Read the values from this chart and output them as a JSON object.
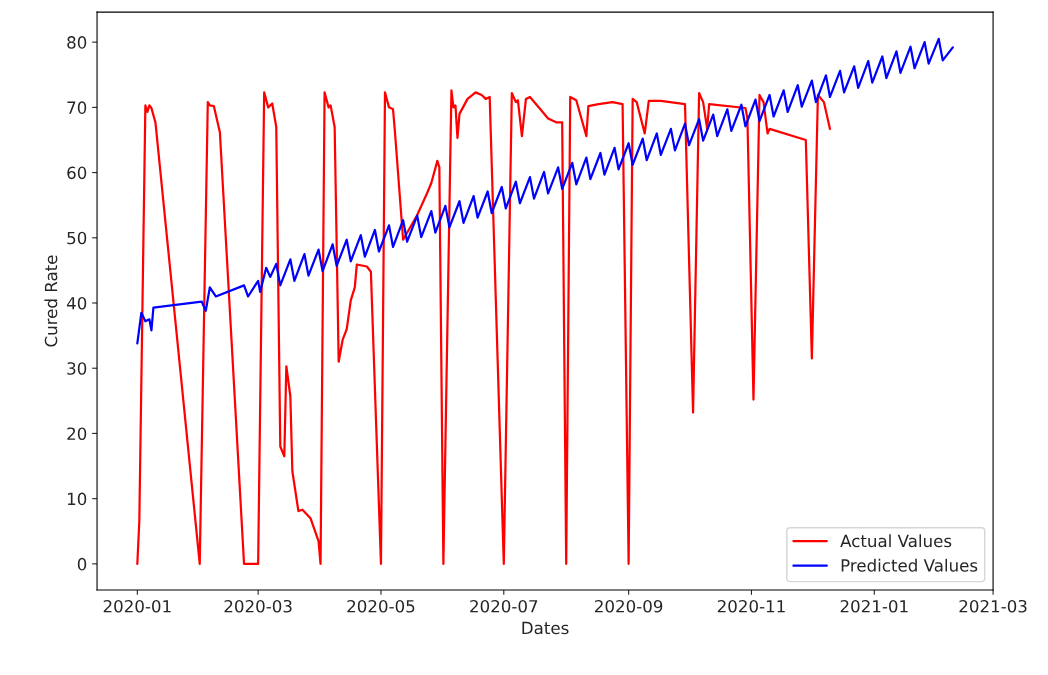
{
  "chart_data": {
    "type": "line",
    "xlabel": "Dates",
    "ylabel": "Cured Rate",
    "xlim": [
      "2019-12-12",
      "2021-03-01"
    ],
    "xticks": [
      "2020-01",
      "2020-03",
      "2020-05",
      "2020-07",
      "2020-09",
      "2020-11",
      "2021-01",
      "2021-03"
    ],
    "ylim": [
      -4,
      84.6
    ],
    "yticks": [
      0,
      10,
      20,
      30,
      40,
      50,
      60,
      70,
      80
    ],
    "grid": false,
    "legend": "lower right",
    "line_style": "solid",
    "marker": "none",
    "series": [
      {
        "name": "Actual Values",
        "color": "#ff0000",
        "x": [
          "2020-01-01",
          "2020-01-02",
          "2020-01-05",
          "2020-01-06",
          "2020-01-07",
          "2020-01-08",
          "2020-01-10",
          "2020-02-01",
          "2020-02-05",
          "2020-02-06",
          "2020-02-08",
          "2020-02-11",
          "2020-02-23",
          "2020-03-01",
          "2020-03-04",
          "2020-03-06",
          "2020-03-08",
          "2020-03-10",
          "2020-03-12",
          "2020-03-14",
          "2020-03-15",
          "2020-03-17",
          "2020-03-18",
          "2020-03-21",
          "2020-03-23",
          "2020-03-27",
          "2020-03-31",
          "2020-04-01",
          "2020-04-03",
          "2020-04-05",
          "2020-04-06",
          "2020-04-08",
          "2020-04-10",
          "2020-04-12",
          "2020-04-14",
          "2020-04-16",
          "2020-04-18",
          "2020-04-19",
          "2020-04-24",
          "2020-04-26",
          "2020-05-01",
          "2020-05-03",
          "2020-05-05",
          "2020-05-07",
          "2020-05-08",
          "2020-05-12",
          "2020-05-19",
          "2020-05-24",
          "2020-05-26",
          "2020-05-29",
          "2020-05-30",
          "2020-06-01",
          "2020-06-05",
          "2020-06-06",
          "2020-06-07",
          "2020-06-08",
          "2020-06-09",
          "2020-06-13",
          "2020-06-17",
          "2020-06-20",
          "2020-06-22",
          "2020-06-24",
          "2020-07-01",
          "2020-07-05",
          "2020-07-07",
          "2020-07-08",
          "2020-07-10",
          "2020-07-12",
          "2020-07-14",
          "2020-07-20",
          "2020-07-23",
          "2020-07-27",
          "2020-07-30",
          "2020-08-01",
          "2020-08-03",
          "2020-08-06",
          "2020-08-11",
          "2020-08-12",
          "2020-08-17",
          "2020-08-24",
          "2020-08-29",
          "2020-09-01",
          "2020-09-03",
          "2020-09-05",
          "2020-09-09",
          "2020-09-11",
          "2020-09-17",
          "2020-09-29",
          "2020-10-03",
          "2020-10-06",
          "2020-10-08",
          "2020-10-10",
          "2020-10-11",
          "2020-10-29",
          "2020-10-30",
          "2020-11-02",
          "2020-11-05",
          "2020-11-07",
          "2020-11-09",
          "2020-11-10",
          "2020-11-28",
          "2020-12-01",
          "2020-12-04",
          "2020-12-07",
          "2020-12-10"
        ],
        "values": [
          0,
          6.6,
          70.3,
          69.3,
          70.3,
          69.9,
          67.7,
          0,
          70.8,
          70.3,
          70.2,
          66.2,
          0,
          0,
          72.3,
          70,
          70.6,
          67,
          18,
          16.5,
          30.3,
          25.7,
          14.2,
          8.1,
          8.3,
          7,
          3.5,
          0,
          72.3,
          70,
          70.3,
          67,
          31,
          34.4,
          36,
          40.4,
          42.4,
          45.9,
          45.6,
          44.8,
          0,
          72.3,
          70,
          69.7,
          66,
          49.7,
          53.5,
          56.9,
          58.4,
          61.8,
          60.8,
          0,
          72.6,
          70,
          70.3,
          65.3,
          69,
          71.3,
          72.3,
          71.9,
          71.3,
          71.6,
          0,
          72.2,
          70.8,
          71.1,
          65.6,
          71.3,
          71.6,
          69.4,
          68.3,
          67.7,
          67.7,
          0,
          71.6,
          71.1,
          65.6,
          70.2,
          70.5,
          70.8,
          70.5,
          0,
          71.3,
          70.8,
          66,
          71,
          71,
          70.5,
          23.2,
          72.2,
          70.8,
          66.7,
          70.5,
          69.9,
          68.3,
          25.2,
          71.9,
          70.8,
          66,
          66.7,
          65,
          31.5,
          71.9,
          70.8,
          66.7
        ]
      },
      {
        "name": "Predicted Values",
        "color": "#0000ff",
        "x": [
          "2020-01-01",
          "2020-01-03",
          "2020-01-05",
          "2020-01-07",
          "2020-01-08",
          "2020-01-09",
          "2020-02-02",
          "2020-02-04",
          "2020-02-06",
          "2020-02-09",
          "2020-02-23",
          "2020-02-25",
          "2020-03-01",
          "2020-03-02",
          "2020-03-05",
          "2020-03-07",
          "2020-03-10",
          "2020-03-12",
          "2020-03-17",
          "2020-03-19",
          "2020-03-24",
          "2020-03-26",
          "2020-03-31",
          "2020-04-02",
          "2020-04-07",
          "2020-04-09",
          "2020-04-14",
          "2020-04-16",
          "2020-04-21",
          "2020-04-23",
          "2020-04-28",
          "2020-04-30",
          "2020-05-05",
          "2020-05-07",
          "2020-05-12",
          "2020-05-14",
          "2020-05-19",
          "2020-05-21",
          "2020-05-26",
          "2020-05-28",
          "2020-06-02",
          "2020-06-04",
          "2020-06-09",
          "2020-06-11",
          "2020-06-16",
          "2020-06-18",
          "2020-06-23",
          "2020-06-25",
          "2020-06-30",
          "2020-07-02",
          "2020-07-07",
          "2020-07-09",
          "2020-07-14",
          "2020-07-16",
          "2020-07-21",
          "2020-07-23",
          "2020-07-28",
          "2020-07-30",
          "2020-08-04",
          "2020-08-06",
          "2020-08-11",
          "2020-08-13",
          "2020-08-18",
          "2020-08-20",
          "2020-08-25",
          "2020-08-27",
          "2020-09-01",
          "2020-09-03",
          "2020-09-08",
          "2020-09-10",
          "2020-09-15",
          "2020-09-17",
          "2020-09-22",
          "2020-09-24",
          "2020-09-29",
          "2020-10-01",
          "2020-10-06",
          "2020-10-08",
          "2020-10-13",
          "2020-10-15",
          "2020-10-20",
          "2020-10-22",
          "2020-10-27",
          "2020-10-29",
          "2020-11-03",
          "2020-11-05",
          "2020-11-10",
          "2020-11-12",
          "2020-11-17",
          "2020-11-19",
          "2020-11-24",
          "2020-11-26",
          "2020-12-01",
          "2020-12-03",
          "2020-12-08",
          "2020-12-10",
          "2020-12-15",
          "2020-12-17",
          "2020-12-22",
          "2020-12-24",
          "2020-12-29",
          "2020-12-31",
          "2021-01-05",
          "2021-01-07",
          "2021-01-12",
          "2021-01-14",
          "2021-01-19",
          "2021-01-21",
          "2021-01-26",
          "2021-01-28",
          "2021-02-02",
          "2021-02-04",
          "2021-02-09"
        ],
        "values": [
          33.8,
          38.5,
          37.2,
          37.5,
          35.8,
          39.3,
          40.2,
          38.8,
          42.4,
          41,
          42.7,
          41,
          43.4,
          41.7,
          45.4,
          44,
          46.0,
          42.7,
          46.7,
          43.4,
          47.5,
          44.2,
          48.2,
          44.9,
          49.0,
          45.7,
          49.7,
          46.4,
          50.4,
          47.1,
          51.2,
          47.9,
          51.9,
          48.6,
          52.7,
          49.4,
          53.4,
          50.1,
          54.1,
          50.8,
          54.9,
          51.6,
          55.6,
          52.3,
          56.4,
          53.1,
          57.1,
          53.8,
          57.8,
          54.5,
          58.6,
          55.3,
          59.3,
          56.0,
          60.1,
          56.8,
          60.8,
          57.5,
          61.5,
          58.2,
          62.3,
          59.0,
          63.0,
          59.7,
          63.8,
          60.5,
          64.5,
          61.2,
          65.2,
          61.9,
          66.0,
          62.7,
          66.7,
          63.4,
          67.5,
          64.2,
          68.2,
          64.9,
          68.9,
          65.6,
          69.7,
          66.4,
          70.4,
          67.1,
          71.2,
          67.9,
          71.9,
          68.6,
          72.6,
          69.3,
          73.4,
          70.1,
          74.1,
          70.8,
          74.9,
          71.6,
          75.6,
          72.3,
          76.3,
          73.0,
          77.1,
          73.8,
          77.8,
          74.5,
          78.6,
          75.3,
          79.3,
          76.0,
          80.0,
          76.7,
          80.5,
          77.2,
          79.2
        ]
      }
    ]
  }
}
